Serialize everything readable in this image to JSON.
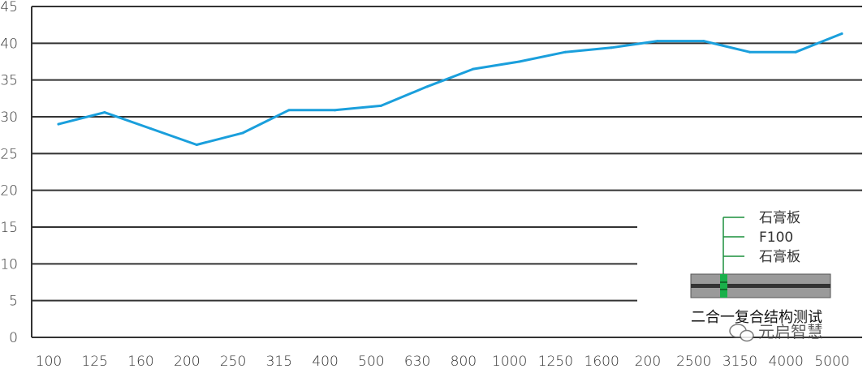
{
  "chart_data": {
    "type": "line",
    "categories": [
      "100",
      "125",
      "160",
      "200",
      "250",
      "315",
      "400",
      "500",
      "630",
      "800",
      "1000",
      "1250",
      "1600",
      "200",
      "2500",
      "3150",
      "4000",
      "5000"
    ],
    "series": [
      {
        "values": [
          29.0,
          30.6,
          28.4,
          26.2,
          27.8,
          30.9,
          30.9,
          31.5,
          34.1,
          36.5,
          37.5,
          38.8,
          39.4,
          40.3,
          40.3,
          38.8,
          38.8,
          41.3
        ]
      }
    ],
    "yticks": [
      "0",
      "5",
      "10",
      "15",
      "20",
      "25",
      "30",
      "35",
      "40",
      "45"
    ],
    "ylim": [
      0,
      45
    ],
    "grid": true,
    "title": "",
    "xlabel": "",
    "ylabel": "",
    "colors": {
      "line": "#1a9fdc",
      "grid": "#333333",
      "inset_accent": "#1a8f3c",
      "panel": "#9a9a9a"
    }
  },
  "inset": {
    "labels": [
      "石膏板",
      "F100",
      "石膏板"
    ],
    "caption": "二合一复合结构测试"
  },
  "watermark": {
    "text": "元启智慧",
    "icon": "wechat-icon"
  }
}
